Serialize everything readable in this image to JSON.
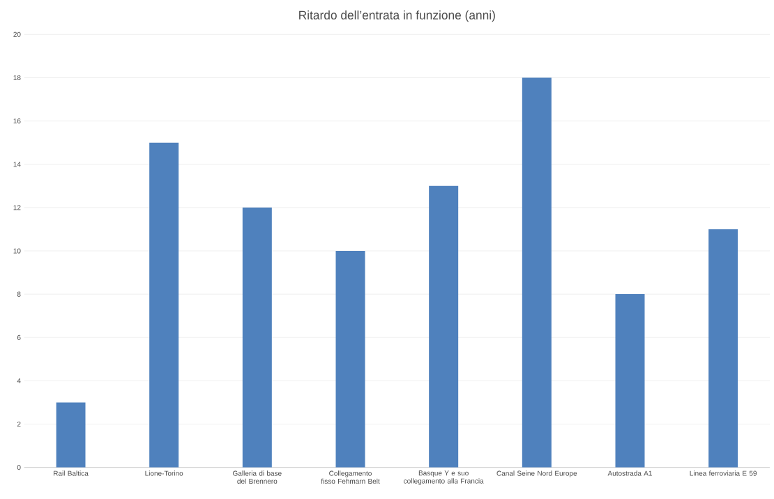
{
  "chart_data": {
    "type": "bar",
    "title": "Ritardo dell’entrata in funzione (anni)",
    "categories": [
      "Rail Baltica",
      "Lione-Torino",
      "Galleria di base del Brennero",
      "Collegamento fisso Fehmarn Belt",
      "Basque Y e suo collegamento alla Francia",
      "Canal Seine Nord Europe",
      "Autostrada A1",
      "Linea ferroviaria E 59"
    ],
    "values": [
      3,
      15,
      12,
      10,
      13,
      18,
      8,
      11
    ],
    "color": "#4f81bd",
    "ylim": [
      0,
      20
    ],
    "yticks": [
      0,
      2,
      4,
      6,
      8,
      10,
      12,
      14,
      16,
      18,
      20
    ],
    "grid": "y"
  }
}
